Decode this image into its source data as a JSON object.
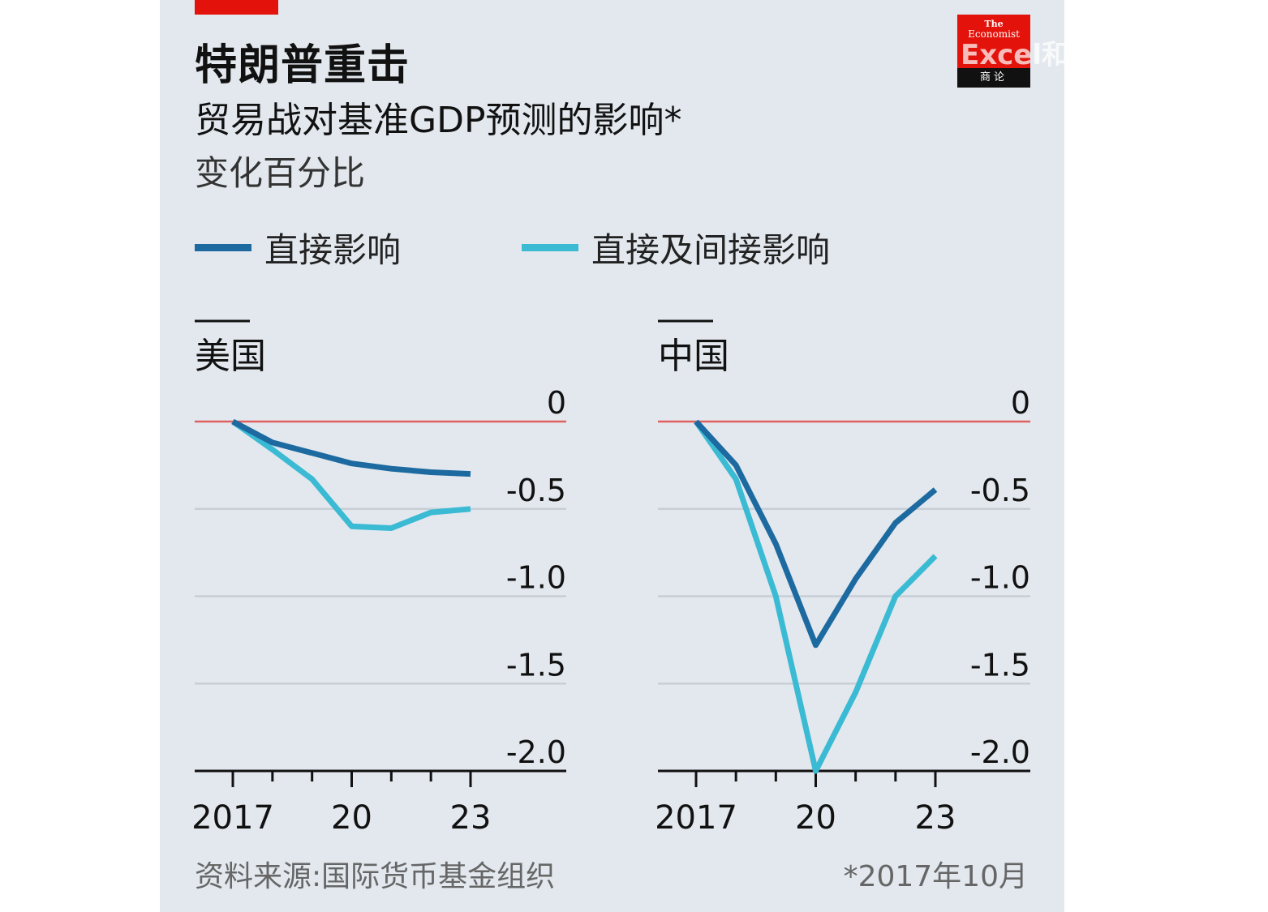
{
  "header": {
    "title": "特朗普重击",
    "subtitle": "贸易战对基准GDP预测的影响*",
    "unit": "变化百分比"
  },
  "legend": [
    {
      "label": "直接影响",
      "color": "#1c6aa0"
    },
    {
      "label": "直接及间接影响",
      "color": "#3bbad4"
    }
  ],
  "logo": {
    "line1": "The",
    "line2": "Economist",
    "bottom": "商论"
  },
  "watermark": "Excel和PowerBI爱好",
  "footer": {
    "source": "资料来源:国际货币基金组织",
    "note": "*2017年10月"
  },
  "colors": {
    "accent": "#e3120b",
    "zero_line": "#e06060",
    "grid": "#c7ced6",
    "background": "#e2e8ee"
  },
  "chart_data": [
    {
      "type": "line",
      "title": "美国",
      "x": [
        2017,
        2018,
        2019,
        2020,
        2021,
        2022,
        2023
      ],
      "x_tick_labels": [
        "2017",
        "20",
        "23"
      ],
      "x_tick_values": [
        2017,
        2020,
        2023
      ],
      "ylim": [
        -2.0,
        0
      ],
      "y_ticks": [
        0,
        -0.5,
        -1.0,
        -1.5,
        -2.0
      ],
      "y_tick_labels": [
        "0",
        "-0.5",
        "-1.0",
        "-1.5",
        "-2.0"
      ],
      "grid": true,
      "series": [
        {
          "name": "直接影响",
          "values": [
            0,
            -0.12,
            -0.18,
            -0.24,
            -0.27,
            -0.29,
            -0.3
          ]
        },
        {
          "name": "直接及间接影响",
          "values": [
            0,
            -0.16,
            -0.33,
            -0.6,
            -0.61,
            -0.52,
            -0.5
          ]
        }
      ]
    },
    {
      "type": "line",
      "title": "中国",
      "x": [
        2017,
        2018,
        2019,
        2020,
        2021,
        2022,
        2023
      ],
      "x_tick_labels": [
        "2017",
        "20",
        "23"
      ],
      "x_tick_values": [
        2017,
        2020,
        2023
      ],
      "ylim": [
        -2.0,
        0
      ],
      "y_ticks": [
        0,
        -0.5,
        -1.0,
        -1.5,
        -2.0
      ],
      "y_tick_labels": [
        "0",
        "-0.5",
        "-1.0",
        "-1.5",
        "-2.0"
      ],
      "grid": true,
      "series": [
        {
          "name": "直接影响",
          "values": [
            0,
            -0.25,
            -0.7,
            -1.28,
            -0.9,
            -0.58,
            -0.39
          ]
        },
        {
          "name": "直接及间接影响",
          "values": [
            0,
            -0.33,
            -1.0,
            -2.0,
            -1.55,
            -1.0,
            -0.77
          ]
        }
      ]
    }
  ]
}
